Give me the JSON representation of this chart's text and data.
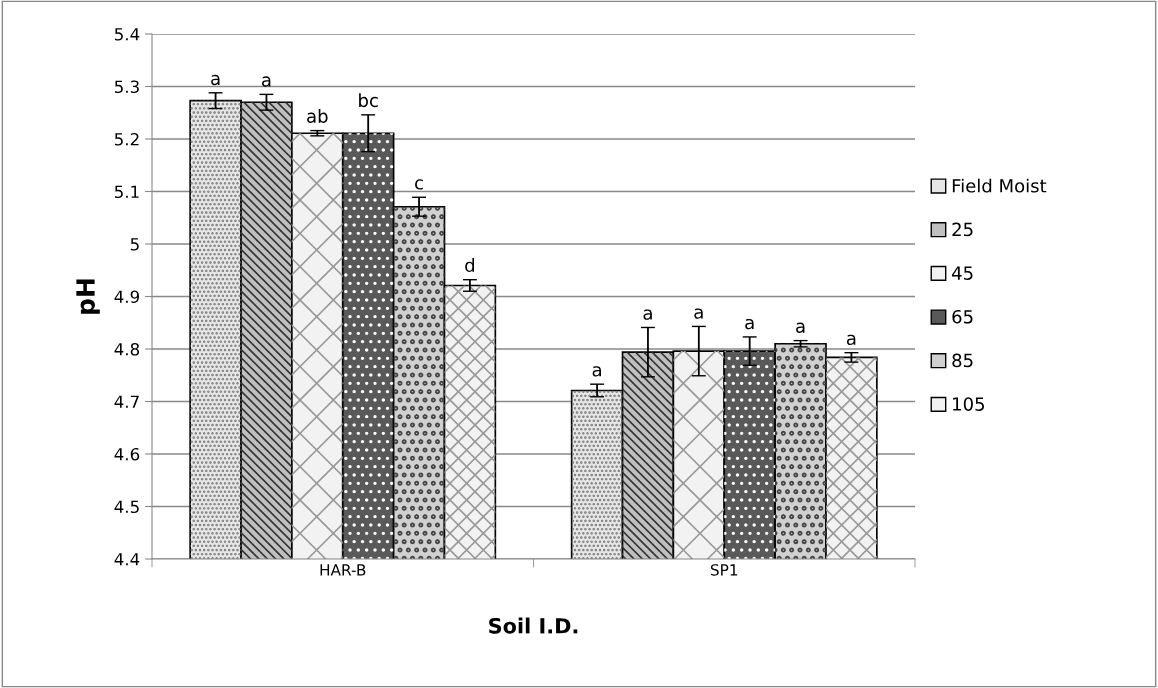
{
  "chart_data": {
    "type": "bar",
    "xlabel": "Soil I.D.",
    "ylabel": "pH",
    "categories": [
      "HAR-B",
      "SP1"
    ],
    "ylim": [
      4.4,
      5.4
    ],
    "yticks": [
      4.4,
      4.5,
      4.6,
      4.7,
      4.8,
      4.9,
      5,
      5.1,
      5.2,
      5.3,
      5.4
    ],
    "grid": "y",
    "legend": "right",
    "series": [
      {
        "name": "Field Moist",
        "color": "#e6e6e6",
        "values": [
          5.273,
          4.721
        ],
        "errors": [
          0.015,
          0.012
        ],
        "value_labels": [
          "a",
          "a"
        ]
      },
      {
        "name": "25",
        "color": "#bfbfbf",
        "values": [
          5.27,
          4.794
        ],
        "errors": [
          0.015,
          0.047
        ],
        "value_labels": [
          "a",
          "a"
        ]
      },
      {
        "name": "45",
        "color": "#f2f2f2",
        "values": [
          5.211,
          4.796
        ],
        "errors": [
          0.005,
          0.047
        ],
        "value_labels": [
          "ab",
          "a"
        ]
      },
      {
        "name": "65",
        "color": "#595959",
        "values": [
          5.211,
          4.796
        ],
        "errors": [
          0.035,
          0.027
        ],
        "value_labels": [
          "bc",
          "a"
        ]
      },
      {
        "name": "85",
        "color": "#d0d0d0",
        "values": [
          5.071,
          4.81
        ],
        "errors": [
          0.018,
          0.006
        ],
        "value_labels": [
          "c",
          "a"
        ]
      },
      {
        "name": "105",
        "color": "#f2f2f2",
        "values": [
          4.921,
          4.784
        ],
        "errors": [
          0.011,
          0.009
        ],
        "value_labels": [
          "d",
          "a"
        ]
      }
    ]
  }
}
